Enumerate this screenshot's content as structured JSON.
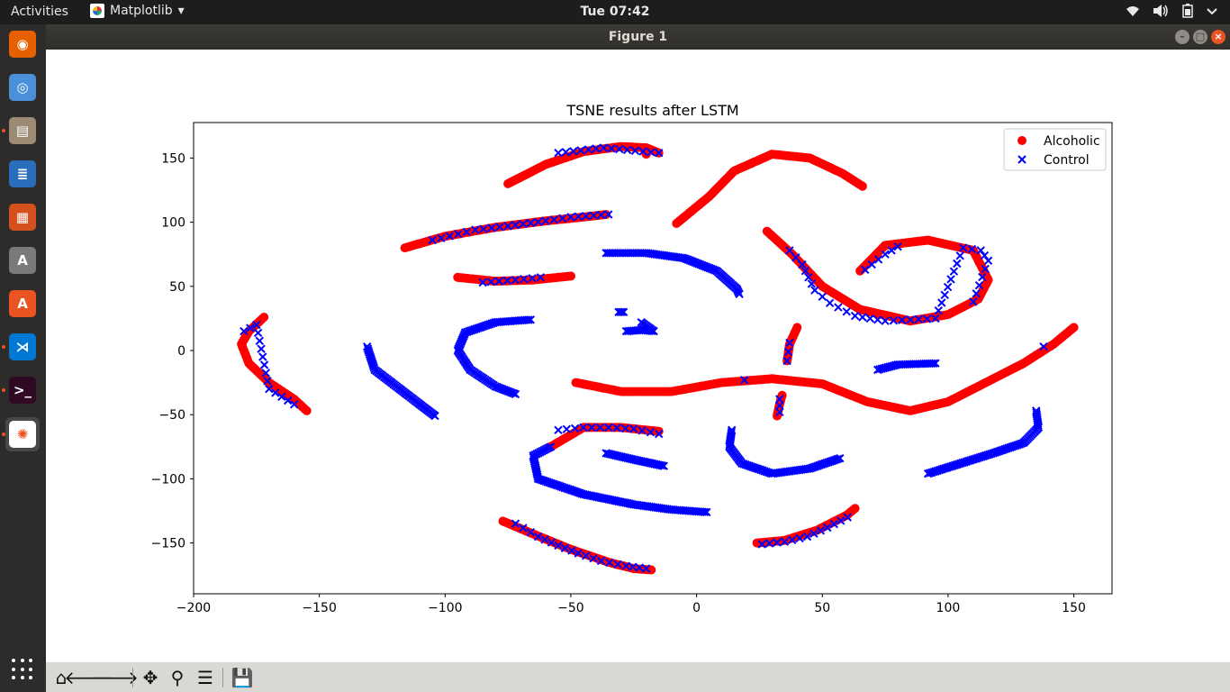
{
  "topbar": {
    "activities": "Activities",
    "app_name": "Matplotlib",
    "app_menu_arrow": "▾",
    "clock": "Tue 07:42",
    "tray_icons": [
      "wifi-icon",
      "volume-icon",
      "battery-icon",
      "chevron-down-icon"
    ]
  },
  "dock": {
    "items": [
      {
        "name": "firefox",
        "icon": "firefox-icon",
        "color": "#e66000",
        "running": false
      },
      {
        "name": "chromium",
        "icon": "chromium-icon",
        "color": "#4a90d9",
        "running": false
      },
      {
        "name": "files",
        "icon": "files-icon",
        "color": "#9b8a74",
        "running": true
      },
      {
        "name": "writer",
        "icon": "writer-icon",
        "color": "#2a6ebb",
        "running": false
      },
      {
        "name": "impress",
        "icon": "impress-icon",
        "color": "#d4501e",
        "running": false
      },
      {
        "name": "software-updater",
        "icon": "updater-icon",
        "color": "#7a7a7a",
        "running": false
      },
      {
        "name": "ubuntu-software",
        "icon": "software-icon",
        "color": "#e95420",
        "running": false
      },
      {
        "name": "vscode",
        "icon": "vscode-icon",
        "color": "#0078d4",
        "running": true
      },
      {
        "name": "terminal",
        "icon": "terminal-icon",
        "color": "#300a24",
        "running": true
      },
      {
        "name": "matplotlib",
        "icon": "matplotlib-icon",
        "color": "#ffffff",
        "running": true
      }
    ],
    "apps_grid_icon": "apps-grid-icon"
  },
  "window": {
    "title": "Figure 1",
    "buttons": {
      "minimize": "–",
      "maximize": "□",
      "close": "×"
    },
    "close_color": "#e95420",
    "button_color": "#8f8d86"
  },
  "toolbar": {
    "buttons": [
      {
        "name": "home",
        "glyph": "⌂"
      },
      {
        "name": "back",
        "glyph": "🡐"
      },
      {
        "name": "forward",
        "glyph": "🡒"
      },
      {
        "name": "pan",
        "glyph": "✥"
      },
      {
        "name": "zoom",
        "glyph": "⚲"
      },
      {
        "name": "configure",
        "glyph": "☰"
      },
      {
        "name": "save",
        "glyph": "💾"
      }
    ]
  },
  "chart_data": {
    "type": "scatter",
    "title": "TSNE results after LSTM",
    "xlabel": "",
    "ylabel": "",
    "xlim": [
      -200,
      165
    ],
    "ylim": [
      -190,
      178
    ],
    "xticks": [
      -200,
      -150,
      -100,
      -50,
      0,
      50,
      100,
      150
    ],
    "yticks": [
      -150,
      -100,
      -50,
      0,
      50,
      100,
      150
    ],
    "tick_labels_x": [
      "−200",
      "−150",
      "−100",
      "−50",
      "0",
      "50",
      "100",
      "150"
    ],
    "tick_labels_y": [
      "−150",
      "−100",
      "−50",
      "0",
      "50",
      "100",
      "150"
    ],
    "grid": false,
    "legend_position": "top-right",
    "series": [
      {
        "name": "Alcoholic",
        "marker": "circle",
        "color": "#ff0000",
        "curves": [
          [
            [
              -75,
              130
            ],
            [
              -60,
              145
            ],
            [
              -45,
              155
            ],
            [
              -30,
              159
            ],
            [
              -20,
              158
            ],
            [
              -15,
              154
            ]
          ],
          [
            [
              -116,
              80
            ],
            [
              -100,
              89
            ],
            [
              -80,
              96
            ],
            [
              -60,
              101
            ],
            [
              -45,
              104
            ],
            [
              -36,
              106
            ]
          ],
          [
            [
              -95,
              57
            ],
            [
              -80,
              54
            ],
            [
              -65,
              55
            ],
            [
              -55,
              57
            ],
            [
              -50,
              58
            ]
          ],
          [
            [
              -172,
              26
            ],
            [
              -178,
              15
            ],
            [
              -181,
              5
            ],
            [
              -178,
              -10
            ],
            [
              -170,
              -25
            ],
            [
              -160,
              -38
            ],
            [
              -155,
              -47
            ]
          ],
          [
            [
              -20,
              153
            ],
            [
              -20,
              153
            ]
          ],
          [
            [
              -8,
              99
            ],
            [
              5,
              120
            ],
            [
              15,
              140
            ],
            [
              30,
              153
            ],
            [
              45,
              150
            ],
            [
              58,
              138
            ],
            [
              66,
              128
            ]
          ],
          [
            [
              28,
              93
            ],
            [
              38,
              75
            ],
            [
              50,
              50
            ],
            [
              65,
              32
            ],
            [
              85,
              23
            ],
            [
              100,
              28
            ],
            [
              112,
              40
            ],
            [
              116,
              55
            ],
            [
              110,
              78
            ],
            [
              92,
              86
            ],
            [
              75,
              82
            ],
            [
              65,
              62
            ]
          ],
          [
            [
              -48,
              -25
            ],
            [
              -30,
              -32
            ],
            [
              -10,
              -32
            ],
            [
              10,
              -25
            ],
            [
              30,
              -22
            ],
            [
              50,
              -26
            ],
            [
              68,
              -40
            ],
            [
              85,
              -47
            ],
            [
              100,
              -40
            ],
            [
              115,
              -25
            ],
            [
              130,
              -10
            ],
            [
              142,
              5
            ],
            [
              150,
              18
            ]
          ],
          [
            [
              40,
              18
            ],
            [
              37,
              5
            ],
            [
              36,
              -8
            ]
          ],
          [
            [
              34,
              -35
            ],
            [
              33,
              -42
            ],
            [
              32,
              -51
            ]
          ],
          [
            [
              -77,
              -133
            ],
            [
              -65,
              -143
            ],
            [
              -50,
              -155
            ],
            [
              -35,
              -165
            ],
            [
              -25,
              -170
            ],
            [
              -18,
              -171
            ]
          ],
          [
            [
              -58,
              -75
            ],
            [
              -45,
              -60
            ],
            [
              -30,
              -60
            ],
            [
              -15,
              -63
            ]
          ],
          [
            [
              24,
              -150
            ],
            [
              35,
              -148
            ],
            [
              48,
              -140
            ],
            [
              60,
              -128
            ],
            [
              63,
              -123
            ]
          ]
        ]
      },
      {
        "name": "Control",
        "marker": "x",
        "color": "#0000ff",
        "curves": [
          [
            [
              -36,
              76
            ],
            [
              -20,
              76
            ],
            [
              -5,
              72
            ],
            [
              8,
              62
            ],
            [
              16,
              48
            ],
            [
              17,
              44
            ]
          ],
          [
            [
              -66,
              24
            ],
            [
              -80,
              22
            ],
            [
              -92,
              14
            ],
            [
              -95,
              0
            ],
            [
              -90,
              -15
            ],
            [
              -80,
              -28
            ],
            [
              -72,
              -34
            ]
          ],
          [
            [
              -131,
              3
            ],
            [
              -128,
              -15
            ],
            [
              -118,
              -30
            ],
            [
              -110,
              -42
            ],
            [
              -104,
              -51
            ]
          ],
          [
            [
              -29,
              30
            ],
            [
              -31,
              30
            ]
          ],
          [
            [
              -28,
              15
            ],
            [
              -22,
              16
            ],
            [
              -17,
              15
            ],
            [
              -22,
              22
            ]
          ],
          [
            [
              -36,
              -80
            ],
            [
              -25,
              -85
            ],
            [
              -13,
              -90
            ]
          ],
          [
            [
              -58,
              -75
            ],
            [
              -65,
              -82
            ],
            [
              -63,
              -100
            ],
            [
              -45,
              -112
            ],
            [
              -25,
              -120
            ],
            [
              -10,
              -124
            ],
            [
              4,
              -126
            ]
          ],
          [
            [
              14,
              -62
            ],
            [
              13,
              -75
            ],
            [
              18,
              -88
            ],
            [
              30,
              -96
            ],
            [
              45,
              -92
            ],
            [
              57,
              -84
            ]
          ],
          [
            [
              72,
              -15
            ],
            [
              80,
              -11
            ],
            [
              95,
              -10
            ]
          ],
          [
            [
              135,
              -47
            ],
            [
              136,
              -60
            ],
            [
              130,
              -72
            ],
            [
              118,
              -80
            ],
            [
              105,
              -88
            ],
            [
              92,
              -96
            ]
          ],
          [
            [
              -180,
              15
            ],
            [
              -175,
              20
            ],
            [
              -170,
              -30
            ],
            [
              -160,
              -42
            ]
          ],
          [
            [
              -55,
              154
            ],
            [
              -37,
              158
            ],
            [
              -15,
              154
            ]
          ],
          [
            [
              -105,
              86
            ],
            [
              -88,
              94
            ],
            [
              -75,
              97
            ],
            [
              -60,
              101
            ],
            [
              -50,
              104
            ],
            [
              -35,
              106
            ]
          ],
          [
            [
              -85,
              53
            ],
            [
              -72,
              55
            ],
            [
              -62,
              57
            ]
          ],
          [
            [
              37,
              78
            ],
            [
              42,
              67
            ],
            [
              47,
              47
            ],
            [
              53,
              37
            ],
            [
              63,
              27
            ],
            [
              75,
              23
            ],
            [
              95,
              25
            ],
            [
              106,
              80
            ],
            [
              113,
              78
            ],
            [
              116,
              70
            ],
            [
              110,
              38
            ]
          ],
          [
            [
              67,
              63
            ],
            [
              75,
              75
            ],
            [
              80,
              81
            ]
          ],
          [
            [
              37,
              6
            ],
            [
              36,
              -8
            ]
          ],
          [
            [
              33,
              -38
            ],
            [
              33,
              -48
            ]
          ],
          [
            [
              19,
              -23
            ]
          ],
          [
            [
              -72,
              -135
            ],
            [
              -63,
              -145
            ],
            [
              -55,
              -152
            ],
            [
              -47,
              -158
            ],
            [
              -38,
              -164
            ],
            [
              -28,
              -168
            ],
            [
              -20,
              -170
            ]
          ],
          [
            [
              -55,
              -62
            ],
            [
              -45,
              -60
            ],
            [
              -35,
              -60
            ],
            [
              -25,
              -61
            ],
            [
              -15,
              -65
            ]
          ],
          [
            [
              26,
              -151
            ],
            [
              35,
              -149
            ],
            [
              44,
              -145
            ],
            [
              52,
              -138
            ],
            [
              60,
              -130
            ]
          ],
          [
            [
              138,
              3
            ]
          ]
        ]
      }
    ]
  }
}
